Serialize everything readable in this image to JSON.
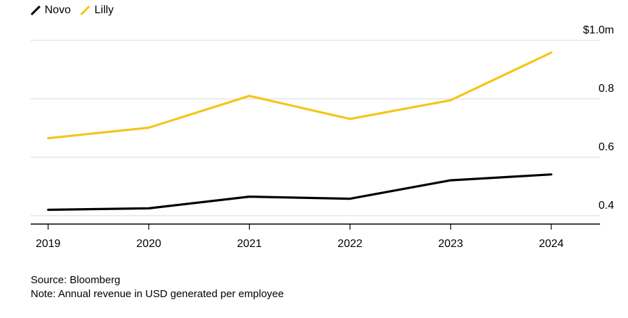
{
  "chart_data": {
    "type": "line",
    "x": [
      "2019",
      "2020",
      "2021",
      "2022",
      "2023",
      "2024"
    ],
    "series": [
      {
        "name": "Novo",
        "color": "#000000",
        "values": [
          0.42,
          0.425,
          0.465,
          0.458,
          0.521,
          0.541
        ]
      },
      {
        "name": "Lilly",
        "color": "#f5c518",
        "values": [
          0.665,
          0.701,
          0.81,
          0.731,
          0.795,
          0.958
        ]
      }
    ],
    "ylim": [
      0.37,
      1.0
    ],
    "yticks": [
      0.4,
      0.6,
      0.8,
      1.0
    ],
    "ytick_labels": [
      "0.4",
      "0.6",
      "0.8",
      "$1.0m"
    ],
    "grid": true,
    "legend": "top-left",
    "source": "Source: Bloomberg",
    "note": "Note: Annual revenue in USD generated per employee"
  }
}
